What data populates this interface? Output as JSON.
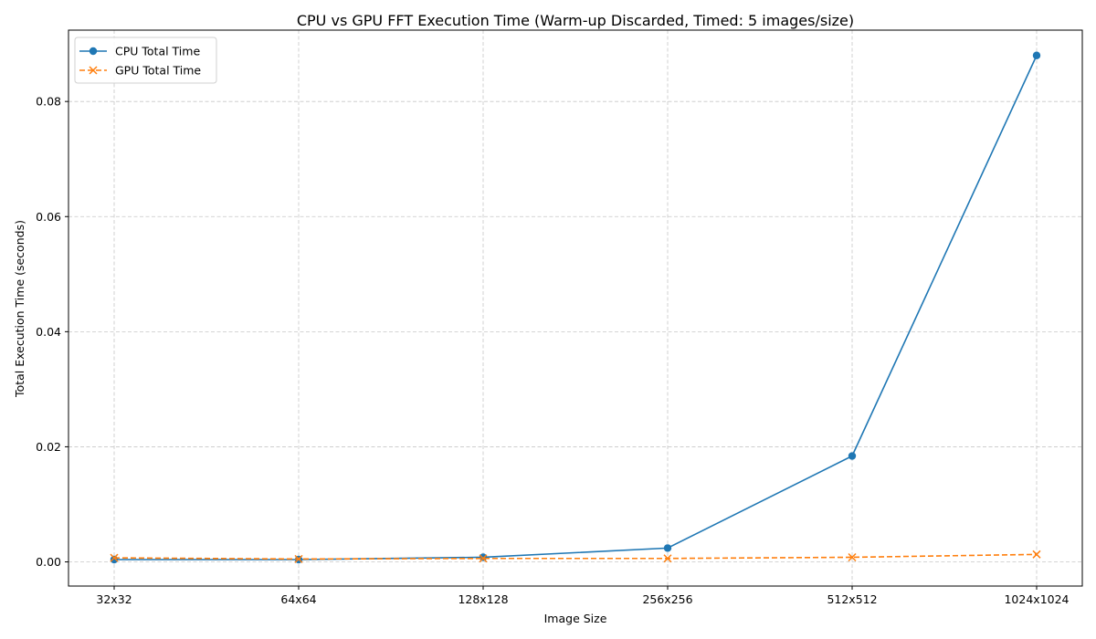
{
  "chart_data": {
    "type": "line",
    "title": "CPU vs GPU FFT Execution Time (Warm-up Discarded, Timed: 5 images/size)",
    "xlabel": "Image Size",
    "ylabel": "Total Execution Time (seconds)",
    "categories": [
      "32x32",
      "64x64",
      "128x128",
      "256x256",
      "512x512",
      "1024x1024"
    ],
    "yticks": [
      0.0,
      0.02,
      0.04,
      0.06,
      0.08
    ],
    "ytick_labels": [
      "0.00",
      "0.02",
      "0.04",
      "0.06",
      "0.08"
    ],
    "ylim": [
      -0.0042,
      0.0924
    ],
    "grid": true,
    "legend_position": "upper-left",
    "series": [
      {
        "name": "CPU Total Time",
        "values": [
          0.0004,
          0.0004,
          0.0008,
          0.0024,
          0.0184,
          0.088
        ],
        "color": "#1f77b4",
        "marker": "circle",
        "linestyle": "solid"
      },
      {
        "name": "GPU Total Time",
        "values": [
          0.0007,
          0.0005,
          0.0006,
          0.0006,
          0.0008,
          0.0013
        ],
        "color": "#ff7f0e",
        "marker": "x",
        "linestyle": "dashed"
      }
    ]
  }
}
